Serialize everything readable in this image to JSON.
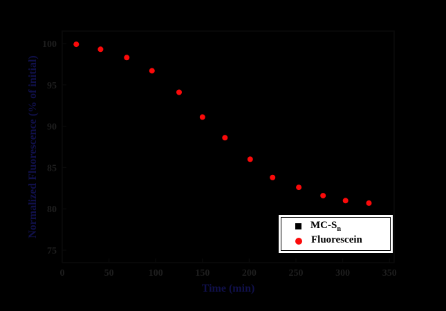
{
  "canvas": {
    "background": "#000000"
  },
  "colors": {
    "plot_bg": "#000000",
    "frame": "#0a0a0a",
    "tick_label": "#1e1e1e",
    "axis_title": "#10104a",
    "legend_bg": "#ffffff",
    "legend_border": "#000000",
    "fluorescein_red": "#fb0a0a",
    "mcsn_black": "#000000"
  },
  "chart_data": {
    "type": "scatter",
    "title": "",
    "xlabel": "Time (min)",
    "ylabel": "Normalized Fluorescence (% of initial)",
    "xlim": [
      0,
      355
    ],
    "ylim": [
      73.5,
      101.5
    ],
    "x_ticks": [
      0,
      50,
      100,
      150,
      200,
      250,
      300,
      350
    ],
    "y_ticks": [
      75,
      80,
      85,
      90,
      95,
      100
    ],
    "grid": false,
    "legend_position": "inside lower-right",
    "series": [
      {
        "name": "MC-Sn",
        "marker": "square",
        "color": "#000000",
        "points": [],
        "points_visible": false,
        "note": "black square markers are indistinguishable from the black plot background"
      },
      {
        "name": "Fluorescein",
        "marker": "circle",
        "color": "#fb0a0a",
        "points": [
          [
            15,
            99.9
          ],
          [
            41,
            99.3
          ],
          [
            69,
            98.3
          ],
          [
            96,
            96.7
          ],
          [
            125,
            94.1
          ],
          [
            150,
            91.1
          ],
          [
            174,
            88.6
          ],
          [
            201,
            86.0
          ],
          [
            225,
            83.8
          ],
          [
            253,
            82.6
          ],
          [
            279,
            81.6
          ],
          [
            303,
            81.0
          ],
          [
            328,
            80.7
          ]
        ]
      }
    ]
  },
  "legend": {
    "entries": [
      {
        "label_base": "MC-S",
        "label_sub": "n",
        "marker": "square",
        "color": "#000000"
      },
      {
        "label_base": "Fluorescein",
        "label_sub": "",
        "marker": "circle",
        "color": "#fb0a0a"
      }
    ]
  }
}
